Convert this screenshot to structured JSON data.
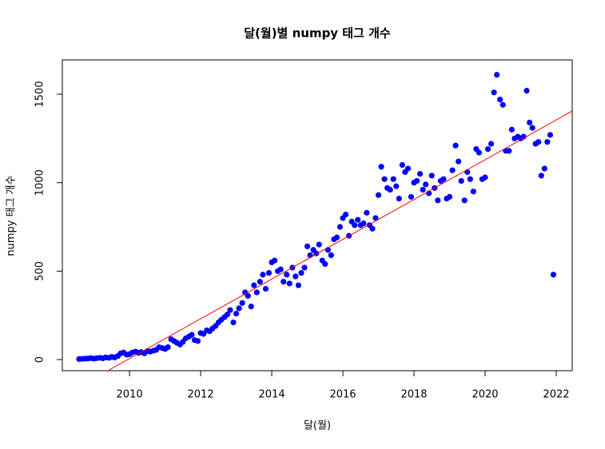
{
  "chart_data": {
    "type": "scatter",
    "title": "달(월)별 numpy 태그 개수",
    "x_label": "달(월)",
    "y_label": "numpy 태그 개수",
    "xlim": [
      2008.11,
      2022.45
    ],
    "ylim": [
      -63,
      1694
    ],
    "xticks": [
      2010,
      2012,
      2014,
      2016,
      2018,
      2020,
      2022
    ],
    "yticks": [
      0,
      500,
      1000,
      1500
    ],
    "series": [
      {
        "color": "#0000ff",
        "x": [
          2008.58,
          2008.67,
          2008.75,
          2008.83,
          2008.92,
          2009,
          2009.08,
          2009.17,
          2009.25,
          2009.33,
          2009.42,
          2009.5,
          2009.58,
          2009.67,
          2009.75,
          2009.83,
          2009.92,
          2010,
          2010.08,
          2010.17,
          2010.25,
          2010.33,
          2010.42,
          2010.5,
          2010.58,
          2010.67,
          2010.75,
          2010.83,
          2010.92,
          2011,
          2011.08,
          2011.17,
          2011.25,
          2011.33,
          2011.42,
          2011.5,
          2011.58,
          2011.67,
          2011.75,
          2011.83,
          2011.92,
          2012,
          2012.08,
          2012.17,
          2012.25,
          2012.33,
          2012.42,
          2012.5,
          2012.58,
          2012.67,
          2012.75,
          2012.83,
          2012.92,
          2013,
          2013.08,
          2013.17,
          2013.25,
          2013.33,
          2013.42,
          2013.5,
          2013.58,
          2013.67,
          2013.75,
          2013.83,
          2013.92,
          2014,
          2014.08,
          2014.17,
          2014.25,
          2014.33,
          2014.42,
          2014.5,
          2014.58,
          2014.67,
          2014.75,
          2014.83,
          2014.92,
          2015,
          2015.08,
          2015.17,
          2015.25,
          2015.33,
          2015.42,
          2015.5,
          2015.58,
          2015.67,
          2015.75,
          2015.83,
          2015.92,
          2016,
          2016.08,
          2016.17,
          2016.25,
          2016.33,
          2016.42,
          2016.5,
          2016.58,
          2016.67,
          2016.75,
          2016.83,
          2016.92,
          2017,
          2017.08,
          2017.17,
          2017.25,
          2017.33,
          2017.42,
          2017.5,
          2017.58,
          2017.67,
          2017.75,
          2017.83,
          2017.92,
          2018,
          2018.08,
          2018.17,
          2018.25,
          2018.33,
          2018.42,
          2018.5,
          2018.58,
          2018.67,
          2018.75,
          2018.83,
          2018.92,
          2019,
          2019.08,
          2019.17,
          2019.25,
          2019.33,
          2019.42,
          2019.5,
          2019.58,
          2019.67,
          2019.75,
          2019.83,
          2019.92,
          2020,
          2020.08,
          2020.17,
          2020.25,
          2020.33,
          2020.42,
          2020.5,
          2020.58,
          2020.67,
          2020.75,
          2020.83,
          2020.92,
          2021,
          2021.08,
          2021.17,
          2021.25,
          2021.33,
          2021.42,
          2021.5,
          2021.58,
          2021.67,
          2021.75,
          2021.83,
          2021.92
        ],
        "values": [
          3,
          4,
          5,
          6,
          8,
          5,
          8,
          10,
          7,
          12,
          10,
          15,
          12,
          20,
          35,
          40,
          28,
          30,
          40,
          45,
          38,
          42,
          35,
          48,
          45,
          50,
          55,
          70,
          65,
          60,
          70,
          115,
          105,
          95,
          85,
          100,
          120,
          130,
          140,
          110,
          105,
          150,
          145,
          165,
          160,
          175,
          190,
          210,
          225,
          240,
          255,
          280,
          210,
          260,
          290,
          320,
          380,
          360,
          300,
          420,
          380,
          440,
          480,
          400,
          490,
          550,
          560,
          500,
          510,
          440,
          480,
          430,
          520,
          470,
          420,
          490,
          520,
          640,
          590,
          620,
          600,
          650,
          560,
          540,
          620,
          590,
          680,
          690,
          750,
          800,
          820,
          700,
          780,
          760,
          790,
          760,
          770,
          830,
          760,
          740,
          800,
          930,
          1090,
          1020,
          970,
          960,
          1020,
          980,
          910,
          1100,
          1060,
          1080,
          920,
          1000,
          1010,
          1050,
          960,
          990,
          940,
          1040,
          970,
          900,
          1010,
          1020,
          910,
          920,
          1070,
          1210,
          1120,
          1010,
          900,
          1060,
          1020,
          950,
          1190,
          1170,
          1020,
          1030,
          1190,
          1220,
          1510,
          1610,
          1470,
          1440,
          1180,
          1180,
          1300,
          1250,
          1260,
          1250,
          1260,
          1520,
          1340,
          1310,
          1220,
          1230,
          1040,
          1080,
          1230,
          1270,
          480
        ]
      }
    ],
    "fit": {
      "color": "#ff0000",
      "x": [
        2009.39,
        2022.45
      ],
      "values": [
        -63,
        1405
      ]
    }
  }
}
